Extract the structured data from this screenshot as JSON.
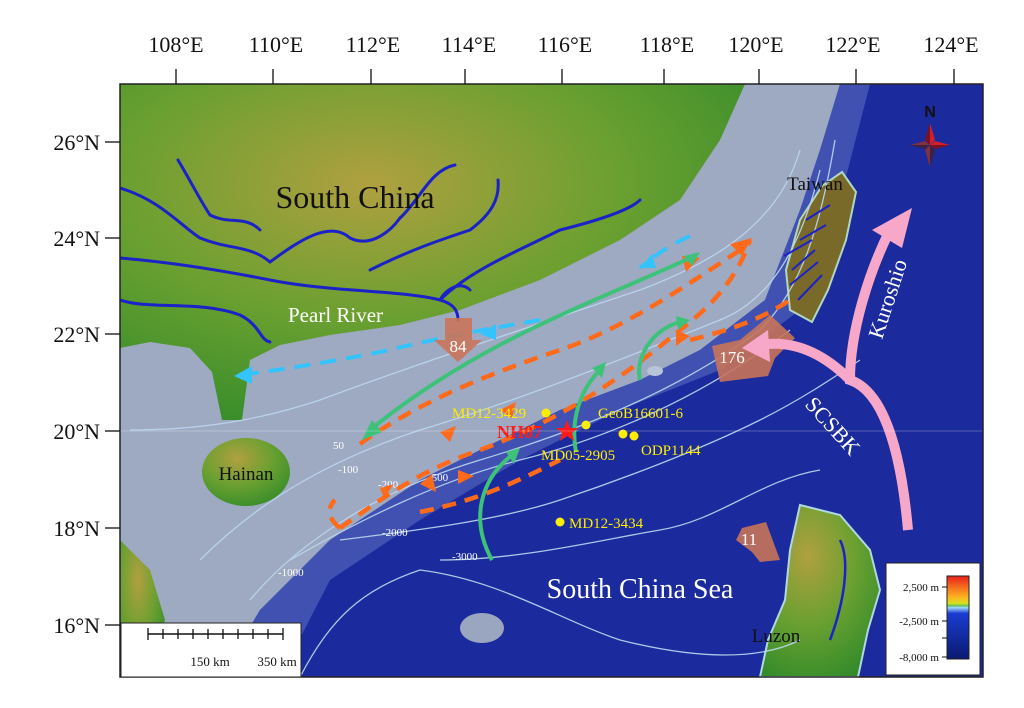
{
  "axes": {
    "lon_ticks": [
      "108°E",
      "110°E",
      "112°E",
      "114°E",
      "116°E",
      "118°E",
      "120°E",
      "122°E",
      "124°E"
    ],
    "lat_ticks": [
      "26°N",
      "24°N",
      "22°N",
      "20°N",
      "18°N",
      "16°N"
    ]
  },
  "regions": {
    "south_china": "South China",
    "taiwan": "Taiwan",
    "pearl_river": "Pearl River",
    "hainan": "Hainan",
    "south_china_sea": "South China Sea",
    "luzon": "Luzon",
    "kuroshio": "Kuroshio",
    "scsbk": "SCSBK"
  },
  "sediment_flux_labels": [
    "84",
    "176",
    "11"
  ],
  "contours": [
    "50",
    "-100",
    "-200",
    "-500",
    "-2000",
    "-3000",
    "-1000"
  ],
  "stations": {
    "nh07": "NH07",
    "md12_3429": "MD12-3429",
    "geob16601": "GeoB16601-6",
    "md05_2905": "MD05-2905",
    "odp1144": "ODP1144",
    "md12_3434": "MD12-3434"
  },
  "north_arrow": "N",
  "scale_bar": {
    "label_1": "150 km",
    "label_2": "350 km"
  },
  "legend": {
    "labels": [
      "2,500 m",
      "-2,500 m",
      "-8,000 m"
    ]
  },
  "colors": {
    "ocean_deep": "#1b2a9c",
    "shelf": "#9ea9c2",
    "land": "#4f9a2c",
    "river": "#1a22c8",
    "station": "#ffee00",
    "nh07": "#ff1a1a",
    "orange_current": "#ff6a1a",
    "green_current": "#3ec27a",
    "cyan_current": "#33c4ff",
    "kuroshio": "#f7a8c8",
    "sediment_arrow": "#c8745a"
  }
}
